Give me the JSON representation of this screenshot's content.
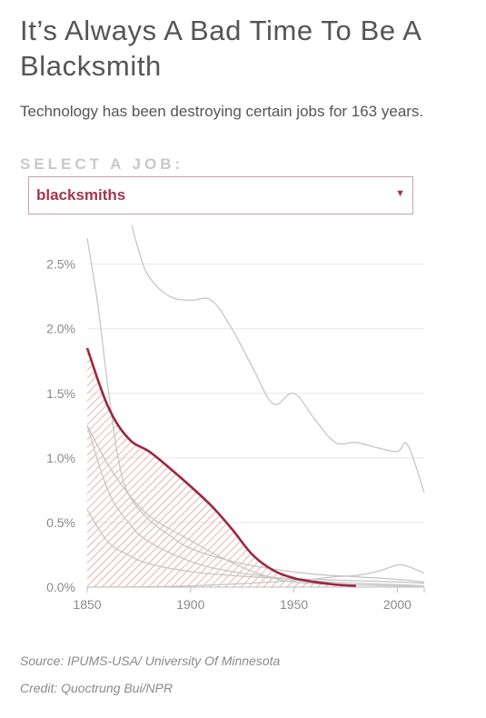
{
  "title": "It’s Always A Bad Time To Be A Blacksmith",
  "subtitle": "Technology has been destroying certain jobs for 163 years.",
  "select_label": "SELECT A JOB:",
  "select_value": "blacksmiths",
  "caret_icon": "triangle-down-icon",
  "source": "Source: IPUMS-USA/ University Of Minnesota",
  "credit": "Credit: Quoctrung Bui/NPR",
  "colors": {
    "highlight": "#9b2740",
    "hatch": "#dc8c82",
    "background_line": "#c6c6c6",
    "grid": "#e8e8e8",
    "tick_text": "#8a8a8a"
  },
  "chart_data": {
    "type": "line",
    "xlabel": "",
    "ylabel": "",
    "xlim": [
      1850,
      2013
    ],
    "ylim": [
      0,
      2.8
    ],
    "x_ticks": [
      1850,
      1900,
      1950,
      2000
    ],
    "y_ticks": [
      0,
      0.5,
      1.0,
      1.5,
      2.0,
      2.5
    ],
    "y_tick_labels": [
      "0.0%",
      "0.5%",
      "1.0%",
      "1.5%",
      "2.0%",
      "2.5%"
    ],
    "grid": "horizontal",
    "highlight_series": "blacksmiths",
    "series": [
      {
        "name": "blacksmiths",
        "highlight": true,
        "x": [
          1850,
          1860,
          1870,
          1880,
          1890,
          1900,
          1910,
          1920,
          1930,
          1940,
          1950,
          1960,
          1970,
          1980
        ],
        "y": [
          1.85,
          1.4,
          1.15,
          1.05,
          0.92,
          0.78,
          0.63,
          0.45,
          0.25,
          0.13,
          0.07,
          0.04,
          0.02,
          0.01
        ]
      },
      {
        "x": [
          1870,
          1875,
          1880,
          1890,
          1900,
          1910,
          1920,
          1930,
          1940,
          1950,
          1960,
          1970,
          1980,
          1990,
          2000,
          2005,
          2013
        ],
        "y": [
          2.9,
          2.6,
          2.4,
          2.25,
          2.22,
          2.22,
          2.0,
          1.7,
          1.42,
          1.5,
          1.3,
          1.12,
          1.12,
          1.08,
          1.05,
          1.1,
          0.73
        ]
      },
      {
        "x": [
          1850,
          1855,
          1860,
          1865,
          1870,
          1880,
          1890,
          1900,
          1920,
          1940,
          1960,
          1980,
          2000,
          2013
        ],
        "y": [
          2.7,
          2.2,
          1.55,
          1.0,
          0.72,
          0.52,
          0.4,
          0.3,
          0.2,
          0.14,
          0.1,
          0.08,
          0.06,
          0.04
        ]
      },
      {
        "x": [
          1850,
          1860,
          1870,
          1880,
          1890,
          1900,
          1910,
          1920,
          1930,
          1940,
          1950,
          1970,
          2000,
          2013
        ],
        "y": [
          1.25,
          0.95,
          0.72,
          0.55,
          0.45,
          0.36,
          0.27,
          0.19,
          0.12,
          0.07,
          0.04,
          0.02,
          0.01,
          0.0
        ]
      },
      {
        "x": [
          1850,
          1860,
          1870,
          1880,
          1900,
          1920,
          1950,
          1980,
          2000,
          2013
        ],
        "y": [
          1.25,
          0.75,
          0.5,
          0.35,
          0.2,
          0.12,
          0.06,
          0.03,
          0.02,
          0.01
        ]
      },
      {
        "x": [
          1850,
          1860,
          1870,
          1880,
          1900,
          1920,
          1940,
          1960,
          1980,
          2000,
          2013
        ],
        "y": [
          0.6,
          0.35,
          0.25,
          0.18,
          0.12,
          0.09,
          0.07,
          0.06,
          0.05,
          0.04,
          0.03
        ]
      },
      {
        "x": [
          1850,
          1900,
          1950,
          1970,
          1980,
          1990,
          2000,
          2005,
          2013
        ],
        "y": [
          0.0,
          0.01,
          0.05,
          0.08,
          0.09,
          0.12,
          0.17,
          0.16,
          0.11
        ]
      }
    ]
  }
}
